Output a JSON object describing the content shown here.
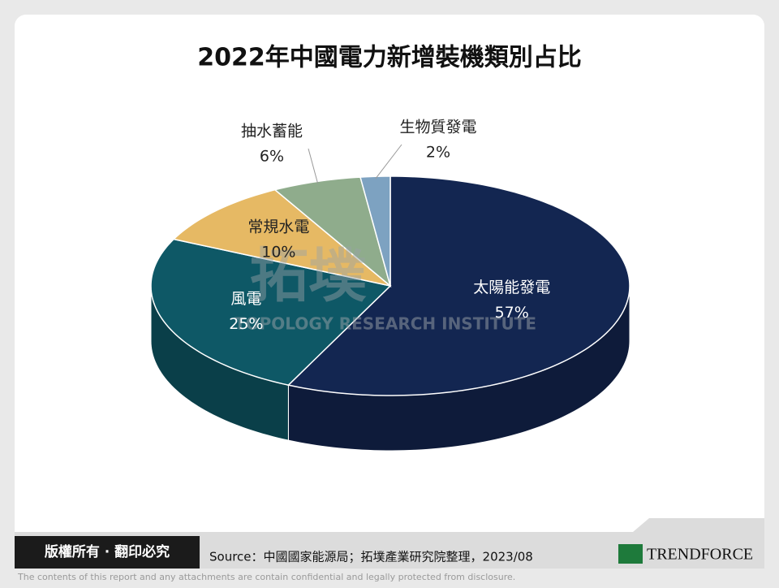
{
  "chart_data": {
    "type": "pie3d",
    "title": "2022年中國電力新增裝機類別占比",
    "categories": [
      "太陽能發電",
      "風電",
      "常規水電",
      "抽水蓄能",
      "生物質發電"
    ],
    "values": [
      57,
      25,
      10,
      6,
      2
    ],
    "value_labels": [
      "57%",
      "25%",
      "10%",
      "6%",
      "2%"
    ],
    "colors": [
      "#132651",
      "#0e5866",
      "#e6b964",
      "#8fac8c",
      "#7da2c1"
    ]
  },
  "watermark": {
    "title": "拓墣",
    "subtitle": "TOPOLOGY RESEARCH INSTITUTE"
  },
  "footer": {
    "copyright": "版權所有 · 翻印必究",
    "source": "Source：中國國家能源局；拓墣產業研究院整理，2023/08",
    "logo": "TRENDFORCE",
    "disclaimer": "The contents of this report and any attachments are contain confidential and legally protected from disclosure."
  }
}
